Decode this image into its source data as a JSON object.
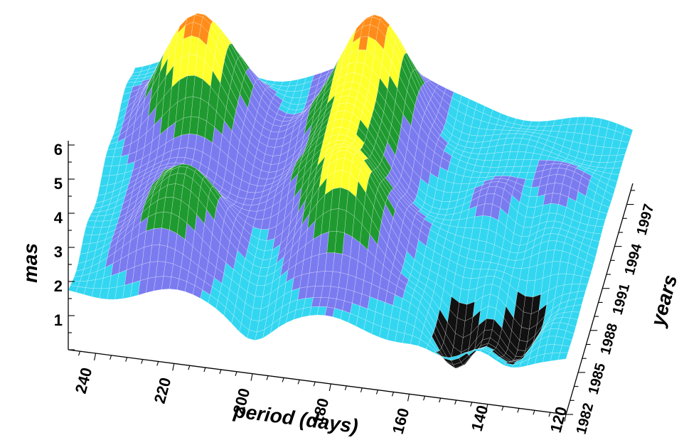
{
  "chart_data": {
    "type": "surface",
    "xlabel": "period (days)",
    "ylabel": "years",
    "zlabel": "mas",
    "x_ticks": [
      "240",
      "220",
      "200",
      "180",
      "160",
      "140",
      "120"
    ],
    "y_ticks": [
      "1982",
      "1985",
      "1988",
      "1991",
      "1994",
      "1997"
    ],
    "z_ticks": [
      "1",
      "2",
      "3",
      "4",
      "5",
      "6"
    ],
    "x_range": [
      247,
      120
    ],
    "y_range": [
      1982,
      1998.5
    ],
    "z_range": [
      0,
      6.2
    ],
    "color_bands": [
      {
        "max": 1.0,
        "color": "#111111"
      },
      {
        "max": 2.0,
        "color": "#33d6f0"
      },
      {
        "max": 3.0,
        "color": "#7b7bf0"
      },
      {
        "max": 4.0,
        "color": "#1f9a30"
      },
      {
        "max": 4.8,
        "color": "#ffff2a"
      },
      {
        "max": 5.4,
        "color": "#ff8c1a"
      },
      {
        "max": 6.0,
        "color": "#ee1111"
      },
      {
        "max": 9.0,
        "color": "#d050ee"
      }
    ],
    "peaks": [
      {
        "period": 226,
        "year": 1994,
        "height": 3.5
      },
      {
        "period": 223,
        "year": 1986,
        "height": 2.3
      },
      {
        "period": 181,
        "year": 1987,
        "height": 2.6
      },
      {
        "period": 183,
        "year": 1995.5,
        "height": 3.2
      },
      {
        "period": 188,
        "year": 1991,
        "height": 1.8
      },
      {
        "period": 140,
        "year": 1992,
        "height": 1.0
      }
    ],
    "base_level": 1.6,
    "dips": [
      {
        "period": 150,
        "year": 1984.5,
        "depth": 1.4
      },
      {
        "period": 135,
        "year": 1985,
        "depth": 1.4
      },
      {
        "period": 200,
        "year": 1983,
        "depth": 0.6
      },
      {
        "period": 140,
        "year": 1991,
        "depth": 0.9
      }
    ]
  }
}
